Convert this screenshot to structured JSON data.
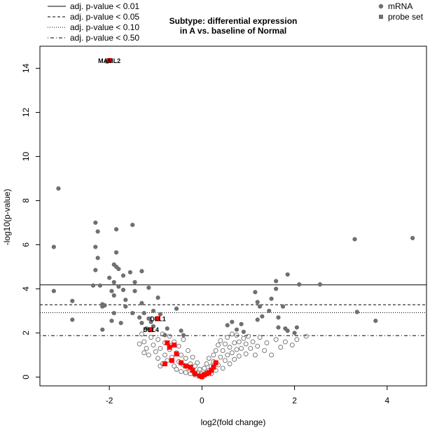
{
  "title_line1": "Subtype: differential expression",
  "title_line2": "in A vs. baseline of Normal",
  "chart_data": {
    "type": "scatter",
    "title": "Subtype: differential expression in A vs. baseline of Normal",
    "xlabel": "log2(fold change)",
    "ylabel": "-log10(p-value)",
    "xlim": [
      -3.5,
      4.85
    ],
    "ylim": [
      -0.4,
      15
    ],
    "xticks": [
      -2,
      0,
      2,
      4
    ],
    "yticks": [
      0,
      2,
      4,
      6,
      8,
      10,
      12,
      14
    ],
    "grid": false,
    "legend_placement": "top (outside plot)",
    "colors": {
      "filled_point": "#6f6f6f",
      "open_point": "#6f6f6f",
      "probe_set": "#ff0000"
    },
    "legend_lines": [
      {
        "label": "adj. p-value < 0.01",
        "style": "solid"
      },
      {
        "label": "adj. p-value < 0.05",
        "style": "dashed"
      },
      {
        "label": "adj. p-value < 0.10",
        "style": "dotted"
      },
      {
        "label": "adj. p-value < 0.50",
        "style": "dotdash"
      }
    ],
    "legend_points": [
      {
        "label": "mRNA",
        "marker": "circle"
      },
      {
        "label": "probe set",
        "marker": "square"
      }
    ],
    "threshold_lines": [
      {
        "y": 4.18,
        "style": "solid"
      },
      {
        "y": 3.28,
        "style": "dashed"
      },
      {
        "y": 2.92,
        "style": "dotted"
      },
      {
        "y": 1.88,
        "style": "dotdash"
      }
    ],
    "filled_points": [
      [
        -3.2,
        5.9
      ],
      [
        -3.2,
        3.9
      ],
      [
        -3.1,
        8.55
      ],
      [
        -2.8,
        3.45
      ],
      [
        -2.8,
        2.6
      ],
      [
        -2.35,
        4.15
      ],
      [
        -2.3,
        7.0
      ],
      [
        -2.3,
        5.9
      ],
      [
        -2.3,
        4.85
      ],
      [
        -2.25,
        6.6
      ],
      [
        -2.25,
        5.4
      ],
      [
        -2.2,
        4.15
      ],
      [
        -2.15,
        3.3
      ],
      [
        -2.15,
        3.2
      ],
      [
        -2.15,
        2.15
      ],
      [
        -2.1,
        3.25
      ],
      [
        -2.0,
        4.5
      ],
      [
        -1.95,
        3.9
      ],
      [
        -1.95,
        2.55
      ],
      [
        -1.9,
        5.1
      ],
      [
        -1.9,
        4.3
      ],
      [
        -1.9,
        3.7
      ],
      [
        -1.9,
        2.9
      ],
      [
        -1.85,
        6.7
      ],
      [
        -1.85,
        5.65
      ],
      [
        -1.85,
        5.0
      ],
      [
        -1.8,
        4.9
      ],
      [
        -1.8,
        4.1
      ],
      [
        -1.75,
        2.45
      ],
      [
        -1.7,
        4.6
      ],
      [
        -1.7,
        3.95
      ],
      [
        -1.65,
        3.5
      ],
      [
        -1.65,
        3.2
      ],
      [
        -1.55,
        4.75
      ],
      [
        -1.5,
        6.9
      ],
      [
        -1.5,
        2.9
      ],
      [
        -1.45,
        4.3
      ],
      [
        -1.45,
        3.9
      ],
      [
        -1.35,
        2.7
      ],
      [
        -1.3,
        4.8
      ],
      [
        -1.3,
        3.35
      ],
      [
        -1.3,
        2.45
      ],
      [
        -1.25,
        2.9
      ],
      [
        -1.2,
        2.2
      ],
      [
        -1.15,
        4.05
      ],
      [
        -1.15,
        2.65
      ],
      [
        -1.1,
        2.5
      ],
      [
        -1.05,
        3.0
      ],
      [
        -1.05,
        2.3
      ],
      [
        -0.95,
        3.6
      ],
      [
        -0.9,
        2.85
      ],
      [
        -0.8,
        1.9
      ],
      [
        -0.75,
        2.2
      ],
      [
        -0.55,
        3.1
      ],
      [
        -0.45,
        2.1
      ],
      [
        -0.4,
        1.9
      ],
      [
        -2.05,
        14.3
      ],
      [
        1.15,
        3.85
      ],
      [
        1.2,
        3.4
      ],
      [
        1.2,
        2.6
      ],
      [
        1.25,
        3.2
      ],
      [
        1.3,
        2.75
      ],
      [
        1.45,
        3.0
      ],
      [
        1.5,
        3.55
      ],
      [
        1.6,
        4.35
      ],
      [
        1.6,
        4.0
      ],
      [
        1.65,
        2.7
      ],
      [
        1.65,
        2.25
      ],
      [
        1.75,
        3.2
      ],
      [
        1.8,
        2.2
      ],
      [
        1.85,
        4.65
      ],
      [
        1.85,
        2.1
      ],
      [
        2.0,
        2.0
      ],
      [
        2.05,
        2.25
      ],
      [
        2.1,
        4.2
      ],
      [
        2.55,
        4.2
      ],
      [
        3.3,
        6.25
      ],
      [
        3.35,
        2.95
      ],
      [
        3.75,
        2.55
      ],
      [
        4.55,
        6.3
      ],
      [
        0.55,
        2.35
      ],
      [
        0.65,
        2.5
      ],
      [
        0.75,
        2.15
      ],
      [
        0.85,
        2.4
      ],
      [
        0.9,
        2.05
      ]
    ],
    "open_points": [
      [
        -1.3,
        1.95
      ],
      [
        -1.25,
        1.6
      ],
      [
        -1.2,
        1.3
      ],
      [
        -1.15,
        1.0
      ],
      [
        -1.1,
        1.8
      ],
      [
        -1.05,
        1.45
      ],
      [
        -1.0,
        1.15
      ],
      [
        -0.95,
        1.7
      ],
      [
        -0.95,
        0.85
      ],
      [
        -0.9,
        1.3
      ],
      [
        -0.85,
        1.95
      ],
      [
        -0.85,
        0.6
      ],
      [
        -0.8,
        1.55
      ],
      [
        -0.8,
        1.0
      ],
      [
        -0.75,
        0.75
      ],
      [
        -0.7,
        1.25
      ],
      [
        -0.7,
        1.85
      ],
      [
        -0.65,
        0.9
      ],
      [
        -0.6,
        0.5
      ],
      [
        -0.6,
        1.6
      ],
      [
        -0.55,
        1.1
      ],
      [
        -0.55,
        0.35
      ],
      [
        -0.5,
        0.7
      ],
      [
        -0.5,
        1.4
      ],
      [
        -0.45,
        0.25
      ],
      [
        -0.45,
        1.0
      ],
      [
        -0.4,
        0.55
      ],
      [
        -0.4,
        1.7
      ],
      [
        -0.35,
        0.2
      ],
      [
        -0.35,
        0.85
      ],
      [
        -0.3,
        0.4
      ],
      [
        -0.3,
        1.2
      ],
      [
        -0.25,
        0.15
      ],
      [
        -0.25,
        0.6
      ],
      [
        -0.2,
        0.3
      ],
      [
        -0.2,
        0.9
      ],
      [
        -0.15,
        0.1
      ],
      [
        -0.15,
        0.5
      ],
      [
        -0.1,
        0.2
      ],
      [
        -0.1,
        0.65
      ],
      [
        -0.05,
        0.05
      ],
      [
        -0.05,
        0.35
      ],
      [
        0.0,
        0.0
      ],
      [
        0.0,
        0.15
      ],
      [
        0.05,
        0.1
      ],
      [
        0.05,
        0.4
      ],
      [
        0.1,
        0.2
      ],
      [
        0.1,
        0.6
      ],
      [
        0.15,
        0.3
      ],
      [
        0.15,
        0.85
      ],
      [
        0.2,
        0.15
      ],
      [
        0.2,
        0.5
      ],
      [
        0.25,
        0.7
      ],
      [
        0.25,
        1.0
      ],
      [
        0.3,
        0.3
      ],
      [
        0.3,
        1.2
      ],
      [
        0.35,
        0.55
      ],
      [
        0.35,
        1.45
      ],
      [
        0.4,
        0.9
      ],
      [
        0.4,
        1.65
      ],
      [
        0.45,
        0.4
      ],
      [
        0.45,
        1.2
      ],
      [
        0.5,
        0.75
      ],
      [
        0.5,
        1.5
      ],
      [
        0.55,
        1.0
      ],
      [
        0.55,
        1.8
      ],
      [
        0.6,
        0.6
      ],
      [
        0.6,
        1.35
      ],
      [
        0.65,
        1.1
      ],
      [
        0.65,
        1.95
      ],
      [
        0.7,
        0.8
      ],
      [
        0.7,
        1.55
      ],
      [
        0.75,
        1.25
      ],
      [
        0.75,
        1.9
      ],
      [
        0.8,
        0.95
      ],
      [
        0.8,
        1.6
      ],
      [
        0.85,
        1.3
      ],
      [
        0.9,
        1.75
      ],
      [
        0.95,
        1.05
      ],
      [
        0.95,
        1.5
      ],
      [
        1.0,
        1.85
      ],
      [
        1.05,
        1.3
      ],
      [
        1.1,
        1.6
      ],
      [
        1.15,
        1.0
      ],
      [
        1.2,
        1.4
      ],
      [
        1.25,
        1.8
      ],
      [
        1.35,
        1.2
      ],
      [
        1.4,
        1.55
      ],
      [
        1.5,
        1.0
      ],
      [
        1.6,
        1.7
      ],
      [
        1.7,
        1.35
      ],
      [
        1.8,
        1.6
      ],
      [
        1.95,
        1.45
      ],
      [
        2.05,
        1.7
      ],
      [
        2.25,
        1.85
      ],
      [
        -1.25,
        1.1
      ],
      [
        -1.35,
        1.5
      ],
      [
        -0.65,
        1.45
      ],
      [
        -0.9,
        0.5
      ]
    ],
    "probe_sets": [
      [
        -2.0,
        14.35
      ],
      [
        -0.95,
        2.65
      ],
      [
        -1.1,
        2.15
      ],
      [
        -0.75,
        1.55
      ],
      [
        -0.7,
        1.35
      ],
      [
        -0.6,
        1.45
      ],
      [
        -0.55,
        1.05
      ],
      [
        -0.45,
        0.65
      ],
      [
        -0.35,
        0.5
      ],
      [
        -0.25,
        0.45
      ],
      [
        -0.2,
        0.3
      ],
      [
        -0.15,
        0.15
      ],
      [
        -0.05,
        0.05
      ],
      [
        0.0,
        0.02
      ],
      [
        0.05,
        0.1
      ],
      [
        0.1,
        0.15
      ],
      [
        0.15,
        0.2
      ],
      [
        0.2,
        0.3
      ],
      [
        0.25,
        0.45
      ],
      [
        0.3,
        0.65
      ],
      [
        -0.8,
        0.6
      ],
      [
        -0.65,
        0.75
      ]
    ],
    "annotations": [
      {
        "label": "MAML2",
        "x": -2.0,
        "y": 14.35
      },
      {
        "label": "DLL1",
        "x": -0.95,
        "y": 2.65
      },
      {
        "label": "DLL4",
        "x": -1.1,
        "y": 2.15
      }
    ]
  }
}
